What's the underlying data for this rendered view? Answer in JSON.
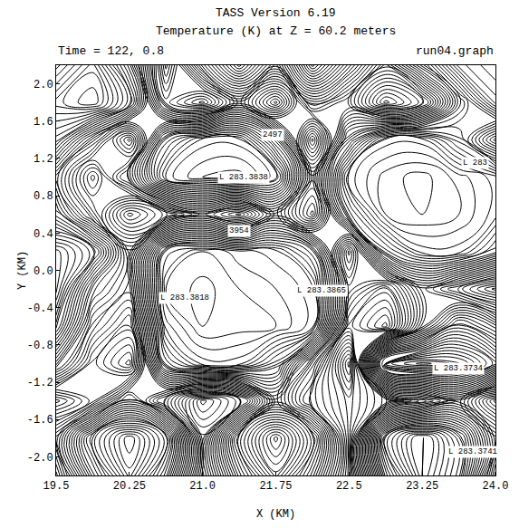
{
  "chart_data": {
    "type": "contour",
    "title": "TASS Version 6.19",
    "subtitle": "Temperature (K) at Z = 60.2 meters",
    "header_left": "Time = 122, 0.8",
    "header_right": "run04.graph",
    "x_label": "X (KM)",
    "y_label": "Y (KM)",
    "color": "#000000",
    "x": [
      19.5,
      19.875,
      20.25,
      20.625,
      21.0,
      21.375,
      21.75,
      22.125,
      22.5,
      22.875,
      23.25,
      23.625,
      24.0
    ],
    "y": [
      -2.2,
      -1.8,
      -1.4,
      -1.0,
      -0.6,
      -0.2,
      0.2,
      0.6,
      1.0,
      1.4,
      1.8,
      2.2
    ],
    "z": [
      [
        283.44,
        283.41,
        283.39,
        283.41,
        283.45,
        283.42,
        283.4,
        283.42,
        283.45,
        283.4,
        283.377,
        283.39,
        283.43
      ],
      [
        283.43,
        283.4,
        283.385,
        283.4,
        283.45,
        283.41,
        283.39,
        283.41,
        283.45,
        283.39,
        283.375,
        283.39,
        283.42
      ],
      [
        283.45,
        283.44,
        283.42,
        283.44,
        283.46,
        283.45,
        283.42,
        283.44,
        283.45,
        283.44,
        283.43,
        283.42,
        283.44
      ],
      [
        283.42,
        283.44,
        283.45,
        283.4,
        283.39,
        283.39,
        283.4,
        283.43,
        283.46,
        283.38,
        283.374,
        283.378,
        283.39
      ],
      [
        283.4,
        283.43,
        283.44,
        283.39,
        283.383,
        283.384,
        283.385,
        283.39,
        283.44,
        283.45,
        283.42,
        283.4,
        283.41
      ],
      [
        283.39,
        283.42,
        283.43,
        283.385,
        283.382,
        283.385,
        283.387,
        283.39,
        283.43,
        283.44,
        283.42,
        283.43,
        283.44
      ],
      [
        283.39,
        283.4,
        283.43,
        283.39,
        283.385,
        283.388,
        283.39,
        283.4,
        283.44,
        283.4,
        283.39,
        283.39,
        283.4
      ],
      [
        283.41,
        283.43,
        283.45,
        283.44,
        283.43,
        283.44,
        283.42,
        283.44,
        283.4,
        283.385,
        283.383,
        283.385,
        283.39
      ],
      [
        283.42,
        283.44,
        283.42,
        283.39,
        283.385,
        283.384,
        283.39,
        283.43,
        283.39,
        283.384,
        283.382,
        283.386,
        283.39
      ],
      [
        283.4,
        283.42,
        283.44,
        283.4,
        283.39,
        283.39,
        283.41,
        283.45,
        283.41,
        283.39,
        283.39,
        283.4,
        283.42
      ],
      [
        283.39,
        283.385,
        283.4,
        283.44,
        283.45,
        283.43,
        283.45,
        283.42,
        283.43,
        283.45,
        283.44,
        283.41,
        283.39
      ],
      [
        283.4,
        283.39,
        283.41,
        283.45,
        283.42,
        283.4,
        283.42,
        283.39,
        283.41,
        283.43,
        283.41,
        283.39,
        283.385
      ]
    ],
    "contour_levels": {
      "start": 283.375,
      "end": 283.46,
      "size": 0.002
    },
    "xlim": [
      19.5,
      24.0
    ],
    "ylim": [
      -2.2,
      2.2
    ],
    "xticks": [
      19.5,
      20.25,
      {
        "value": 21,
        "label": "21.0"
      },
      21.75,
      22.5,
      23.25,
      {
        "value": 24,
        "label": "24.0"
      }
    ],
    "yticks": [
      {
        "value": -2,
        "label": "-2.0"
      },
      -1.6,
      -1.2,
      -0.8,
      -0.4,
      {
        "value": 0,
        "label": "0.0"
      },
      0.4,
      0.8,
      1.2,
      1.6,
      {
        "value": 2,
        "label": "2.0"
      }
    ],
    "grid": false,
    "annotations": [
      {
        "text": "L 283.3838",
        "x": 21.15,
        "y": 1.0
      },
      {
        "text": "L 283.3818",
        "x": 20.55,
        "y": -0.3
      },
      {
        "text": "L 283.3865",
        "x": 21.95,
        "y": -0.22
      },
      {
        "text": "L 283.3734",
        "x": 23.35,
        "y": -1.05
      },
      {
        "text": "L 283.3741",
        "x": 23.5,
        "y": -1.95
      },
      {
        "text": "3954",
        "x": 21.25,
        "y": 0.42
      },
      {
        "text": "2497",
        "x": 21.6,
        "y": 1.45
      },
      {
        "text": "L 283",
        "x": 23.65,
        "y": 1.15
      }
    ]
  }
}
